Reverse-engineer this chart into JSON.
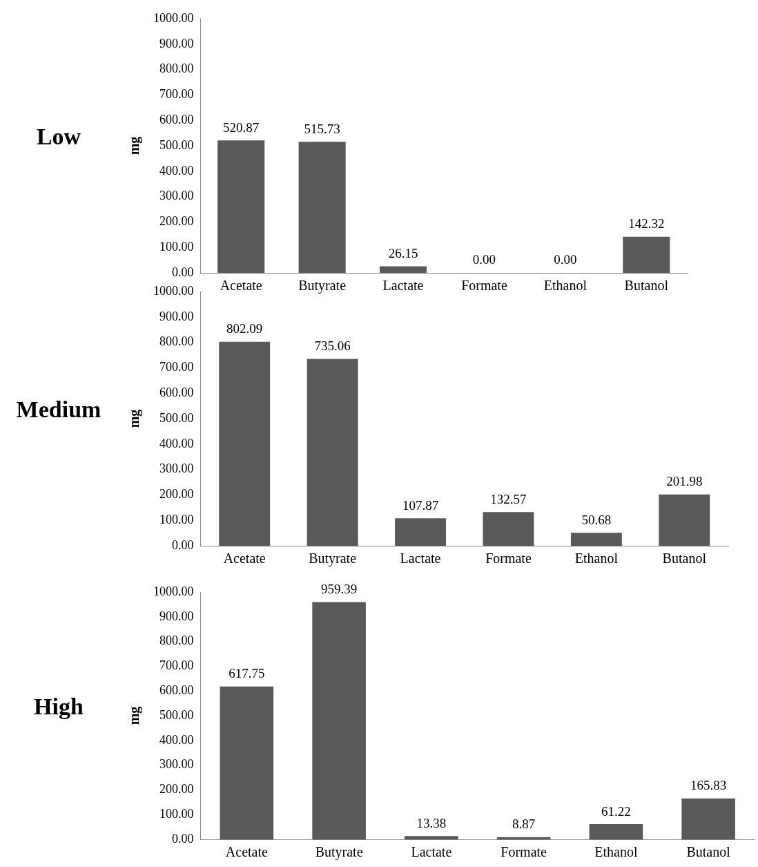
{
  "chart_data": [
    {
      "type": "bar",
      "title": "Low",
      "ylabel": "mg",
      "categories": [
        "Acetate",
        "Butyrate",
        "Lactate",
        "Formate",
        "Ethanol",
        "Butanol"
      ],
      "values": [
        520.87,
        515.73,
        26.15,
        0,
        0,
        142.32
      ],
      "value_labels": [
        "520.87",
        "515.73",
        "26.15",
        "0.00",
        "0.00",
        "142.32"
      ],
      "color": "#595959",
      "ylim": [
        0,
        1000
      ],
      "yticks": [
        {
          "value": 0,
          "label": "0.00"
        },
        {
          "value": 100,
          "label": "100.00"
        },
        {
          "value": 200,
          "label": "200.00"
        },
        {
          "value": 300,
          "label": "300.00"
        },
        {
          "value": 400,
          "label": "400.00"
        },
        {
          "value": 500,
          "label": "500.00"
        },
        {
          "value": 600,
          "label": "600.00"
        },
        {
          "value": 700,
          "label": "700.00"
        },
        {
          "value": 800,
          "label": "800.00"
        },
        {
          "value": 900,
          "label": "900.00"
        },
        {
          "value": 1000,
          "label": "1000.00"
        }
      ],
      "grid": false,
      "legend": false
    },
    {
      "type": "bar",
      "title": "Medium",
      "ylabel": "mg",
      "categories": [
        "Acetate",
        "Butyrate",
        "Lactate",
        "Formate",
        "Ethanol",
        "Butanol"
      ],
      "values": [
        802.09,
        735.06,
        107.87,
        132.57,
        50.68,
        201.98
      ],
      "value_labels": [
        "802.09",
        "735.06",
        "107.87",
        "132.57",
        "50.68",
        "201.98"
      ],
      "color": "#595959",
      "ylim": [
        0,
        1000
      ],
      "yticks": [
        {
          "value": 0,
          "label": "0.00"
        },
        {
          "value": 100,
          "label": "100.00"
        },
        {
          "value": 200,
          "label": "200.00"
        },
        {
          "value": 300,
          "label": "300.00"
        },
        {
          "value": 400,
          "label": "400.00"
        },
        {
          "value": 500,
          "label": "500.00"
        },
        {
          "value": 600,
          "label": "600.00"
        },
        {
          "value": 700,
          "label": "700.00"
        },
        {
          "value": 800,
          "label": "800.00"
        },
        {
          "value": 900,
          "label": "900.00"
        },
        {
          "value": 1000,
          "label": "1000.00"
        }
      ],
      "grid": false,
      "legend": false
    },
    {
      "type": "bar",
      "title": "High",
      "ylabel": "mg",
      "categories": [
        "Acetate",
        "Butyrate",
        "Lactate",
        "Formate",
        "Ethanol",
        "Butanol"
      ],
      "values": [
        617.75,
        959.39,
        13.38,
        8.87,
        61.22,
        165.83
      ],
      "value_labels": [
        "617.75",
        "959.39",
        "13.38",
        "8.87",
        "61.22",
        "165.83"
      ],
      "color": "#595959",
      "ylim": [
        0,
        1000
      ],
      "yticks": [
        {
          "value": 0,
          "label": "0.00"
        },
        {
          "value": 100,
          "label": "100.00"
        },
        {
          "value": 200,
          "label": "200.00"
        },
        {
          "value": 300,
          "label": "300.00"
        },
        {
          "value": 400,
          "label": "400.00"
        },
        {
          "value": 500,
          "label": "500.00"
        },
        {
          "value": 600,
          "label": "600.00"
        },
        {
          "value": 700,
          "label": "700.00"
        },
        {
          "value": 800,
          "label": "800.00"
        },
        {
          "value": 900,
          "label": "900.00"
        },
        {
          "value": 1000,
          "label": "1000.00"
        }
      ],
      "grid": false,
      "legend": false
    }
  ]
}
